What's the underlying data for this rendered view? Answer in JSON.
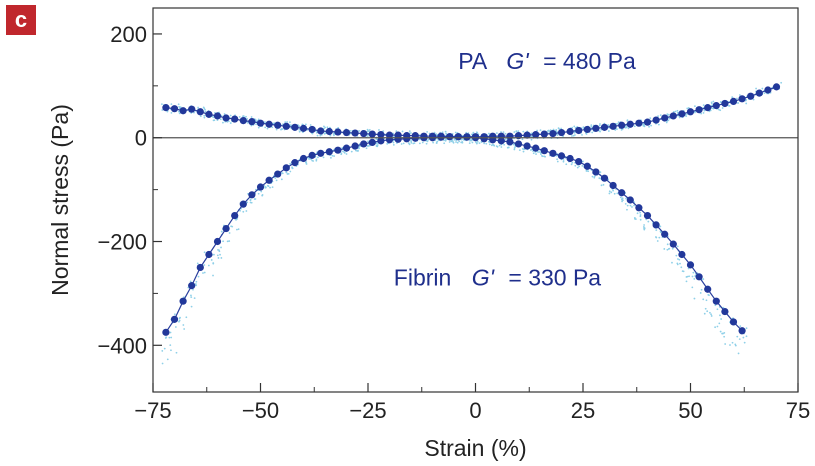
{
  "panel_label": "c",
  "colors": {
    "series_marker": "#22389a",
    "series_line": "#2a3f9e",
    "raw_points": "#8fd0e8",
    "axis": "#333333",
    "badge": "#c0272d",
    "annotation_text": "#1f2f8c"
  },
  "chart_data": {
    "type": "scatter",
    "xlabel": "Strain (%)",
    "ylabel": "Normal stress (Pa)",
    "xlim": [
      -75,
      75
    ],
    "ylim": [
      -490,
      250
    ],
    "xticks": [
      -75,
      -50,
      -25,
      0,
      25,
      50,
      75
    ],
    "yticks": [
      -400,
      -200,
      0,
      200
    ],
    "xtick_labels": [
      "−75",
      "−50",
      "−25",
      "0",
      "25",
      "50",
      "75"
    ],
    "ytick_labels": [
      "−400",
      "−200",
      "0",
      "200"
    ],
    "zero_line": true,
    "annotations": [
      {
        "text_pre": "PA",
        "symbol": "G'",
        "text_post": "= 480 Pa"
      },
      {
        "text_pre": "Fibrin",
        "symbol": "G'",
        "text_post": "= 330 Pa"
      }
    ],
    "series": [
      {
        "x": [
          -72,
          -70,
          -68,
          -66,
          -64,
          -62,
          -60,
          -58,
          -56,
          -54,
          -52,
          -50,
          -48,
          -46,
          -44,
          -42,
          -40,
          -38,
          -36,
          -34,
          -32,
          -30,
          -28,
          -26,
          -24,
          -22,
          -20,
          -18,
          -16,
          -14,
          -12,
          -10,
          -8,
          -6,
          -4,
          -2,
          0,
          2,
          4,
          6,
          8,
          10,
          12,
          14,
          16,
          18,
          20,
          22,
          24,
          26,
          28,
          30,
          32,
          34,
          36,
          38,
          40,
          42,
          44,
          46,
          48,
          50,
          52,
          54,
          56,
          58,
          60,
          62,
          64,
          66,
          68,
          70
        ],
        "y": [
          58,
          56,
          52,
          55,
          50,
          45,
          42,
          38,
          36,
          33,
          31,
          28,
          26,
          24,
          22,
          20,
          18,
          16,
          13,
          12,
          11,
          10,
          9,
          8,
          7,
          6,
          5,
          5,
          4,
          4,
          3,
          3,
          3,
          2,
          2,
          2,
          2,
          2,
          3,
          3,
          3,
          4,
          5,
          6,
          7,
          8,
          10,
          12,
          14,
          16,
          18,
          20,
          22,
          24,
          26,
          28,
          30,
          34,
          38,
          42,
          46,
          50,
          54,
          58,
          62,
          66,
          70,
          75,
          80,
          86,
          92,
          98
        ]
      },
      {
        "x": [
          -72,
          -70,
          -68,
          -66,
          -64,
          -62,
          -60,
          -58,
          -56,
          -54,
          -52,
          -50,
          -48,
          -46,
          -44,
          -42,
          -40,
          -38,
          -36,
          -34,
          -32,
          -30,
          -28,
          -26,
          -24,
          -22,
          -20,
          -18,
          -16,
          -14,
          -12,
          -10,
          -8,
          -6,
          -4,
          -2,
          0,
          2,
          4,
          6,
          8,
          10,
          12,
          14,
          16,
          18,
          20,
          22,
          24,
          26,
          28,
          30,
          32,
          34,
          36,
          38,
          40,
          42,
          44,
          46,
          48,
          50,
          52,
          54,
          56,
          58,
          60,
          62
        ],
        "y": [
          -375,
          -350,
          -315,
          -285,
          -250,
          -225,
          -200,
          -175,
          -150,
          -128,
          -110,
          -95,
          -82,
          -70,
          -58,
          -48,
          -40,
          -34,
          -30,
          -27,
          -24,
          -20,
          -16,
          -12,
          -9,
          -6,
          -4,
          -3,
          -2,
          -1,
          0,
          0,
          1,
          2,
          2,
          1,
          0,
          -2,
          -4,
          -6,
          -8,
          -12,
          -16,
          -20,
          -25,
          -30,
          -35,
          -40,
          -46,
          -55,
          -66,
          -78,
          -92,
          -106,
          -120,
          -135,
          -150,
          -168,
          -186,
          -205,
          -225,
          -245,
          -268,
          -292,
          -315,
          -335,
          -355,
          -372
        ]
      }
    ]
  }
}
